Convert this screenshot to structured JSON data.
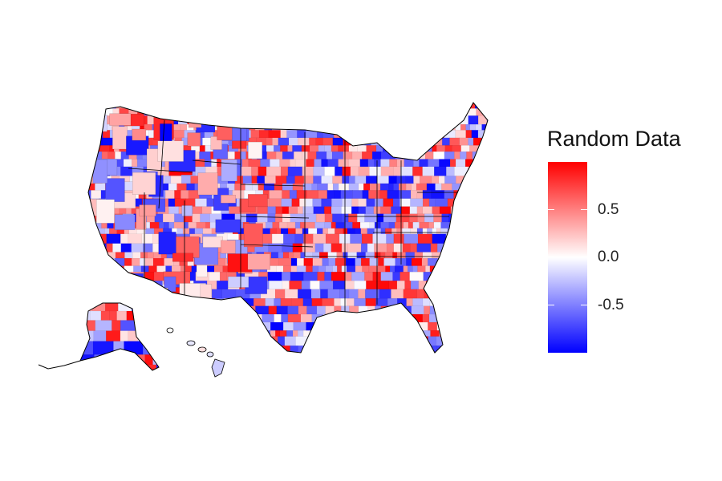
{
  "legend": {
    "title": "Random Data",
    "ticks": [
      {
        "value": 0.5,
        "label": "0.5"
      },
      {
        "value": 0.0,
        "label": "0.0"
      },
      {
        "value": -0.5,
        "label": "-0.5"
      }
    ],
    "range": [
      -1,
      1
    ],
    "colors": {
      "low": "#0000ff",
      "mid": "#ffffff",
      "high": "#ff0000"
    }
  }
}
